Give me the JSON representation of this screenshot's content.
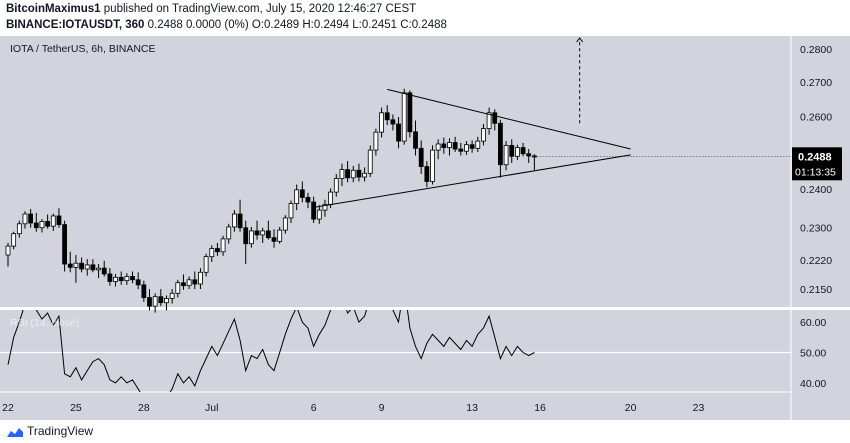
{
  "header": {
    "author": "BitcoinMaximus1",
    "published_text": "published on TradingView.com, July 15, 2020 12:46:27 CEST",
    "symbol": "BINANCE:IOTAUSDT, 360",
    "ohlc_text": "0.2488 0.0000 (0%) O:0.2489 H:0.2494 L:0.2451 C:0.2488"
  },
  "footer": {
    "brand": "TradingView"
  },
  "colors": {
    "background": "#d1d4dc",
    "candle_body_up": "#ffffff",
    "candle_body_down": "#000000",
    "outline": "#000000",
    "price_label_bg": "#000000",
    "price_label_text": "#ffffff",
    "brand": "#2962ff"
  },
  "chart_data": [
    {
      "type": "candlestick",
      "title": "IOTA / TetherUS, 6h, BINANCE",
      "y_ticks": [
        "0.2800",
        "0.2700",
        "0.2600",
        "0.2400",
        "0.2300",
        "0.2220",
        "0.2150"
      ],
      "ylim": [
        0.2108,
        0.284
      ],
      "y_scale": "log",
      "x_ticks": [
        "22",
        "25",
        "28",
        "Jul",
        "6",
        "9",
        "13",
        "16",
        "20",
        "23"
      ],
      "current_price": "0.2488",
      "countdown": "01:13:35",
      "grid": true,
      "candles_ohlc": [
        [
          0.2232,
          0.2262,
          0.2204,
          0.2254
        ],
        [
          0.2254,
          0.229,
          0.2246,
          0.2285
        ],
        [
          0.2285,
          0.2318,
          0.2275,
          0.231
        ],
        [
          0.231,
          0.2342,
          0.2298,
          0.2335
        ],
        [
          0.2335,
          0.2348,
          0.23,
          0.2312
        ],
        [
          0.2312,
          0.2338,
          0.229,
          0.23
        ],
        [
          0.23,
          0.2322,
          0.2288,
          0.2316
        ],
        [
          0.2316,
          0.2334,
          0.2298,
          0.2304
        ],
        [
          0.2304,
          0.2336,
          0.2292,
          0.233
        ],
        [
          0.233,
          0.235,
          0.23,
          0.2308
        ],
        [
          0.2308,
          0.2318,
          0.2192,
          0.221
        ],
        [
          0.221,
          0.224,
          0.219,
          0.2202
        ],
        [
          0.2202,
          0.2232,
          0.2165,
          0.2212
        ],
        [
          0.2212,
          0.2226,
          0.219,
          0.2198
        ],
        [
          0.2198,
          0.2222,
          0.2182,
          0.2208
        ],
        [
          0.2208,
          0.2222,
          0.219,
          0.2196
        ],
        [
          0.2196,
          0.221,
          0.2176,
          0.22
        ],
        [
          0.22,
          0.2218,
          0.218,
          0.2186
        ],
        [
          0.2186,
          0.22,
          0.2158,
          0.2168
        ],
        [
          0.2168,
          0.2186,
          0.2156,
          0.2178
        ],
        [
          0.2178,
          0.2192,
          0.216,
          0.217
        ],
        [
          0.217,
          0.2188,
          0.216,
          0.218
        ],
        [
          0.218,
          0.2192,
          0.2164,
          0.2172
        ],
        [
          0.2172,
          0.219,
          0.215,
          0.216
        ],
        [
          0.216,
          0.217,
          0.212,
          0.213
        ],
        [
          0.213,
          0.215,
          0.21,
          0.211
        ],
        [
          0.211,
          0.214,
          0.2095,
          0.2132
        ],
        [
          0.2132,
          0.215,
          0.211,
          0.2118
        ],
        [
          0.2118,
          0.2135,
          0.21,
          0.2128
        ],
        [
          0.2128,
          0.215,
          0.2116,
          0.214
        ],
        [
          0.214,
          0.2172,
          0.213,
          0.2165
        ],
        [
          0.2165,
          0.2185,
          0.2148,
          0.2158
        ],
        [
          0.2158,
          0.218,
          0.215,
          0.2172
        ],
        [
          0.2172,
          0.2192,
          0.215,
          0.2162
        ],
        [
          0.2162,
          0.22,
          0.215,
          0.219
        ],
        [
          0.219,
          0.2235,
          0.218,
          0.2228
        ],
        [
          0.2228,
          0.2256,
          0.2215,
          0.2248
        ],
        [
          0.2248,
          0.2262,
          0.223,
          0.224
        ],
        [
          0.224,
          0.228,
          0.223,
          0.2272
        ],
        [
          0.2272,
          0.231,
          0.226,
          0.2302
        ],
        [
          0.2302,
          0.2345,
          0.229,
          0.2335
        ],
        [
          0.2335,
          0.2372,
          0.229,
          0.23
        ],
        [
          0.23,
          0.2318,
          0.221,
          0.226
        ],
        [
          0.226,
          0.2302,
          0.225,
          0.2292
        ],
        [
          0.2292,
          0.2318,
          0.227,
          0.2282
        ],
        [
          0.2282,
          0.23,
          0.2262,
          0.2292
        ],
        [
          0.2292,
          0.2318,
          0.227,
          0.2275
        ],
        [
          0.2275,
          0.2296,
          0.225,
          0.2266
        ],
        [
          0.2266,
          0.2302,
          0.226,
          0.2294
        ],
        [
          0.2294,
          0.2332,
          0.2285,
          0.2325
        ],
        [
          0.2325,
          0.237,
          0.2312,
          0.2362
        ],
        [
          0.2362,
          0.2412,
          0.2345,
          0.2398
        ],
        [
          0.2398,
          0.242,
          0.2365,
          0.2378
        ],
        [
          0.2378,
          0.239,
          0.235,
          0.2366
        ],
        [
          0.2366,
          0.238,
          0.2312,
          0.2322
        ],
        [
          0.2322,
          0.2358,
          0.231,
          0.2345
        ],
        [
          0.2345,
          0.2372,
          0.2328,
          0.236
        ],
        [
          0.236,
          0.2402,
          0.235,
          0.2392
        ],
        [
          0.2392,
          0.244,
          0.238,
          0.2428
        ],
        [
          0.2428,
          0.2468,
          0.2408,
          0.2452
        ],
        [
          0.2452,
          0.2475,
          0.2418,
          0.243
        ],
        [
          0.243,
          0.2462,
          0.2418,
          0.245
        ],
        [
          0.245,
          0.2468,
          0.242,
          0.2432
        ],
        [
          0.2432,
          0.2458,
          0.242,
          0.2442
        ],
        [
          0.2442,
          0.2518,
          0.2432,
          0.2505
        ],
        [
          0.2505,
          0.2565,
          0.249,
          0.2555
        ],
        [
          0.2555,
          0.2625,
          0.254,
          0.261
        ],
        [
          0.261,
          0.2632,
          0.2575,
          0.259
        ],
        [
          0.259,
          0.2605,
          0.256,
          0.2578
        ],
        [
          0.2578,
          0.2598,
          0.251,
          0.253
        ],
        [
          0.253,
          0.268,
          0.252,
          0.2668
        ],
        [
          0.2668,
          0.2675,
          0.254,
          0.2556
        ],
        [
          0.2556,
          0.2588,
          0.249,
          0.251
        ],
        [
          0.251,
          0.2532,
          0.244,
          0.246
        ],
        [
          0.246,
          0.2475,
          0.2405,
          0.242
        ],
        [
          0.242,
          0.2518,
          0.2412,
          0.2505
        ],
        [
          0.2505,
          0.2535,
          0.248,
          0.2522
        ],
        [
          0.2522,
          0.254,
          0.2495,
          0.2512
        ],
        [
          0.2512,
          0.2538,
          0.249,
          0.2526
        ],
        [
          0.2526,
          0.2542,
          0.25,
          0.2508
        ],
        [
          0.2508,
          0.2525,
          0.249,
          0.2502
        ],
        [
          0.2502,
          0.253,
          0.2492,
          0.252
        ],
        [
          0.252,
          0.2532,
          0.2498,
          0.251
        ],
        [
          0.251,
          0.2542,
          0.25,
          0.253
        ],
        [
          0.253,
          0.2578,
          0.2518,
          0.2565
        ],
        [
          0.2565,
          0.2625,
          0.2548,
          0.261
        ],
        [
          0.261,
          0.262,
          0.256,
          0.258
        ],
        [
          0.258,
          0.259,
          0.243,
          0.2465
        ],
        [
          0.2465,
          0.253,
          0.245,
          0.2518
        ],
        [
          0.2518,
          0.2535,
          0.247,
          0.2488
        ],
        [
          0.2488,
          0.252,
          0.2478,
          0.2512
        ],
        [
          0.2512,
          0.2525,
          0.2488,
          0.2495
        ],
        [
          0.2495,
          0.2508,
          0.247,
          0.2489
        ],
        [
          0.2489,
          0.2494,
          0.2451,
          0.2488
        ]
      ],
      "x_index_of_ticks": [
        0,
        12,
        24,
        36,
        54,
        66,
        82,
        94,
        110,
        122
      ],
      "trendlines": [
        {
          "from": [
            67,
            0.2678
          ],
          "to": [
            110,
            0.2508
          ]
        },
        {
          "from": [
            54,
            0.2352
          ],
          "to": [
            110,
            0.2492
          ]
        }
      ],
      "projection_arrow": {
        "x": 101,
        "from": 0.258,
        "to": 0.284
      }
    },
    {
      "type": "line",
      "title": "RSI (14, close)",
      "y_ticks": [
        "60.00",
        "50.00",
        "40.00"
      ],
      "ylim": [
        37,
        64
      ],
      "reference_line": 50,
      "values": [
        46,
        55,
        60,
        66,
        70,
        64,
        61,
        63,
        59,
        62,
        43,
        42,
        45,
        41,
        44,
        47,
        48,
        46,
        41,
        40,
        42,
        40,
        41,
        38,
        35,
        31,
        36,
        33,
        35,
        38,
        43,
        40,
        42,
        39,
        44,
        48,
        52,
        49,
        53,
        57,
        61,
        54,
        44,
        49,
        48,
        51,
        46,
        44,
        50,
        56,
        61,
        65,
        60,
        58,
        52,
        56,
        59,
        64,
        67,
        69,
        63,
        65,
        60,
        62,
        68,
        71,
        73,
        66,
        64,
        60,
        72,
        58,
        52,
        48,
        53,
        56,
        54,
        52,
        55,
        53,
        51,
        54,
        52,
        56,
        58,
        62,
        55,
        48,
        52,
        49,
        52,
        50,
        49,
        50
      ]
    }
  ]
}
